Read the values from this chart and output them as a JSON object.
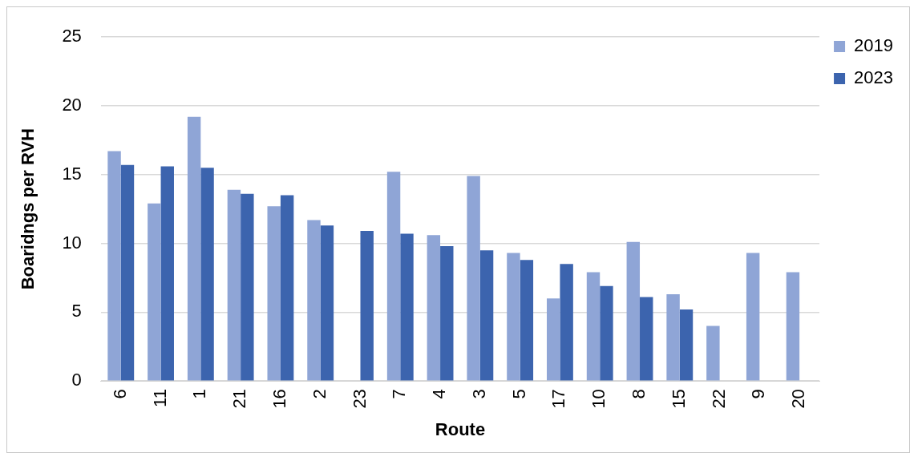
{
  "chart_data": {
    "type": "bar",
    "xlabel": "Route",
    "ylabel": "Boaridngs per RVH",
    "categories": [
      "6",
      "11",
      "1",
      "21",
      "16",
      "2",
      "23",
      "7",
      "4",
      "3",
      "5",
      "17",
      "10",
      "8",
      "15",
      "22",
      "9",
      "20"
    ],
    "series": [
      {
        "name": "2019",
        "color": "#8fa5d6",
        "values": [
          16.7,
          12.9,
          19.2,
          13.9,
          12.7,
          11.7,
          null,
          15.2,
          10.6,
          14.9,
          9.3,
          6.0,
          7.9,
          10.1,
          6.3,
          4.0,
          9.3,
          7.9
        ]
      },
      {
        "name": "2023",
        "color": "#3c64ae",
        "values": [
          15.7,
          15.6,
          15.5,
          13.6,
          13.5,
          11.3,
          10.9,
          10.7,
          9.8,
          9.5,
          8.8,
          8.5,
          6.9,
          6.1,
          5.2,
          null,
          null,
          null
        ]
      }
    ],
    "ylim": [
      0,
      25
    ],
    "yticks": [
      0,
      5,
      10,
      15,
      20,
      25
    ],
    "grid": "y",
    "legend": "top right"
  }
}
